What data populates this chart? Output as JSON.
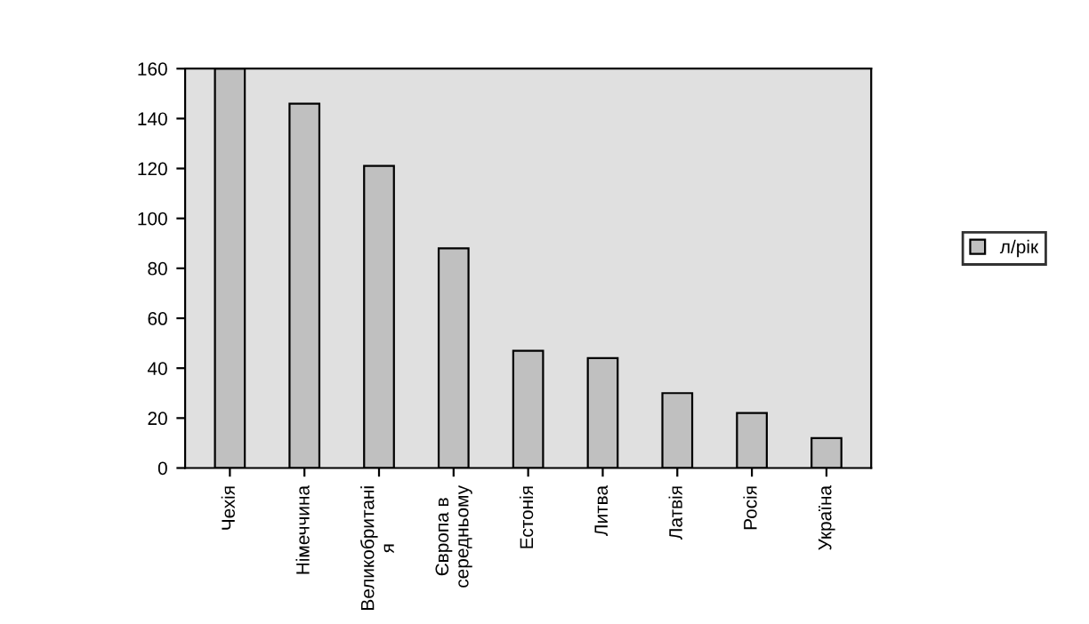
{
  "chart_data": {
    "type": "bar",
    "categories": [
      "Чехія",
      "Німеччина",
      "Великобританія",
      "Європа в середньому",
      "Естонія",
      "Литва",
      "Латвія",
      "Росія",
      "Україна"
    ],
    "series": [
      {
        "name": "л/рік",
        "color": "#c0c0c0",
        "values": [
          160,
          146,
          121,
          88,
          47,
          44,
          30,
          22,
          12
        ]
      }
    ],
    "ylim": [
      0,
      160
    ],
    "yticks": [
      0,
      20,
      40,
      60,
      80,
      100,
      120,
      140,
      160
    ],
    "grid": false,
    "legend": "right"
  }
}
